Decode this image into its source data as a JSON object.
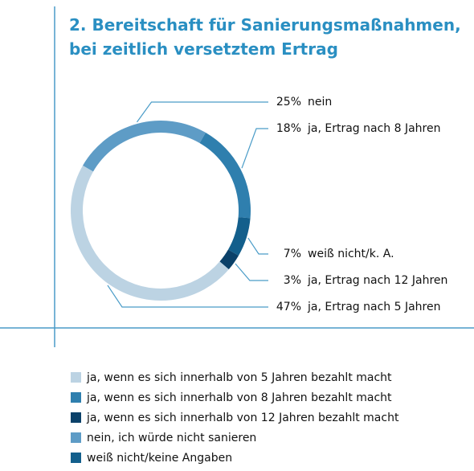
{
  "chart_data": {
    "type": "donut",
    "title": "2. Bereitschaft für Sanierungsmaßnahmen, bei zeitlich versetztem Ertrag",
    "categories": [
      "nein",
      "ja, Ertrag nach 8 Jahren",
      "weiß nicht/k. A.",
      "ja, Ertrag nach 12 Jahren",
      "ja, Ertrag nach 5 Jahren"
    ],
    "values": [
      25,
      18,
      7,
      3,
      47
    ],
    "value_labels": [
      "25%",
      "18%",
      "7%",
      "3%",
      "47%"
    ],
    "colors": [
      "#5e9cc6",
      "#2f7fae",
      "#135f8c",
      "#0b4169",
      "#bcd3e3"
    ],
    "legend": [
      {
        "label": "ja, wenn es sich innerhalb von 5 Jahren bezahlt macht",
        "color": "#bcd3e3"
      },
      {
        "label": "ja, wenn es sich innerhalb von 8 Jahren bezahlt macht",
        "color": "#2f7fae"
      },
      {
        "label": "ja, wenn es sich innerhalb von 12 Jahren bezahlt macht",
        "color": "#0b4169"
      },
      {
        "label": "nein, ich würde nicht sanieren",
        "color": "#5e9cc6"
      },
      {
        "label": "weiß nicht/keine Angaben",
        "color": "#135f8c"
      }
    ]
  }
}
